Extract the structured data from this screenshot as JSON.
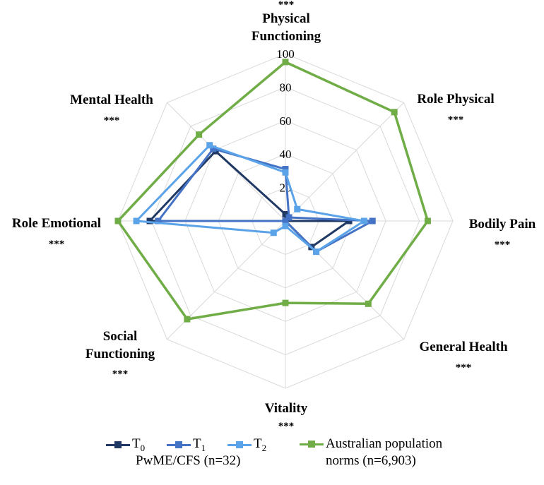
{
  "chart_data": {
    "type": "radar",
    "title": "",
    "axes": [
      {
        "label": [
          "Physical",
          "Functioning"
        ],
        "sig": "***"
      },
      {
        "label": [
          "Role Physical"
        ],
        "sig": "***"
      },
      {
        "label": [
          "Bodily Pain"
        ],
        "sig": "***"
      },
      {
        "label": [
          "General Health"
        ],
        "sig": "***"
      },
      {
        "label": [
          "Vitality"
        ],
        "sig": "***"
      },
      {
        "label": [
          "Social",
          "Functioning"
        ],
        "sig": "***"
      },
      {
        "label": [
          "Role Emotional"
        ],
        "sig": "***"
      },
      {
        "label": [
          "Mental Health"
        ],
        "sig": "***"
      }
    ],
    "rlim": [
      0,
      100
    ],
    "ticks": [
      "0",
      "20",
      "40",
      "60",
      "80",
      "100"
    ],
    "tick_values": [
      0,
      20,
      40,
      60,
      80,
      100
    ],
    "series": [
      {
        "name": "T",
        "sub": "0",
        "color": "#1f3864",
        "values": [
          4,
          0,
          38,
          22,
          0,
          0,
          81,
          59
        ]
      },
      {
        "name": "T",
        "sub": "1",
        "color": "#4472c4",
        "values": [
          31,
          3,
          52,
          26,
          0,
          0,
          76,
          61
        ]
      },
      {
        "name": "T",
        "sub": "2",
        "color": "#5ba3e8",
        "values": [
          29,
          10,
          47,
          26,
          3,
          10,
          89,
          64
        ]
      },
      {
        "name": "Australian population norms (n=6,903)",
        "color": "#70ad47",
        "values": [
          95,
          92,
          85,
          70,
          49,
          83,
          100,
          73
        ]
      }
    ],
    "legend_caption": "PwME/CFS (n=32)",
    "legend_norm_lines": [
      "Australian population",
      "norms (n=6,903)"
    ],
    "legend_position": "bottom",
    "grid": true
  }
}
